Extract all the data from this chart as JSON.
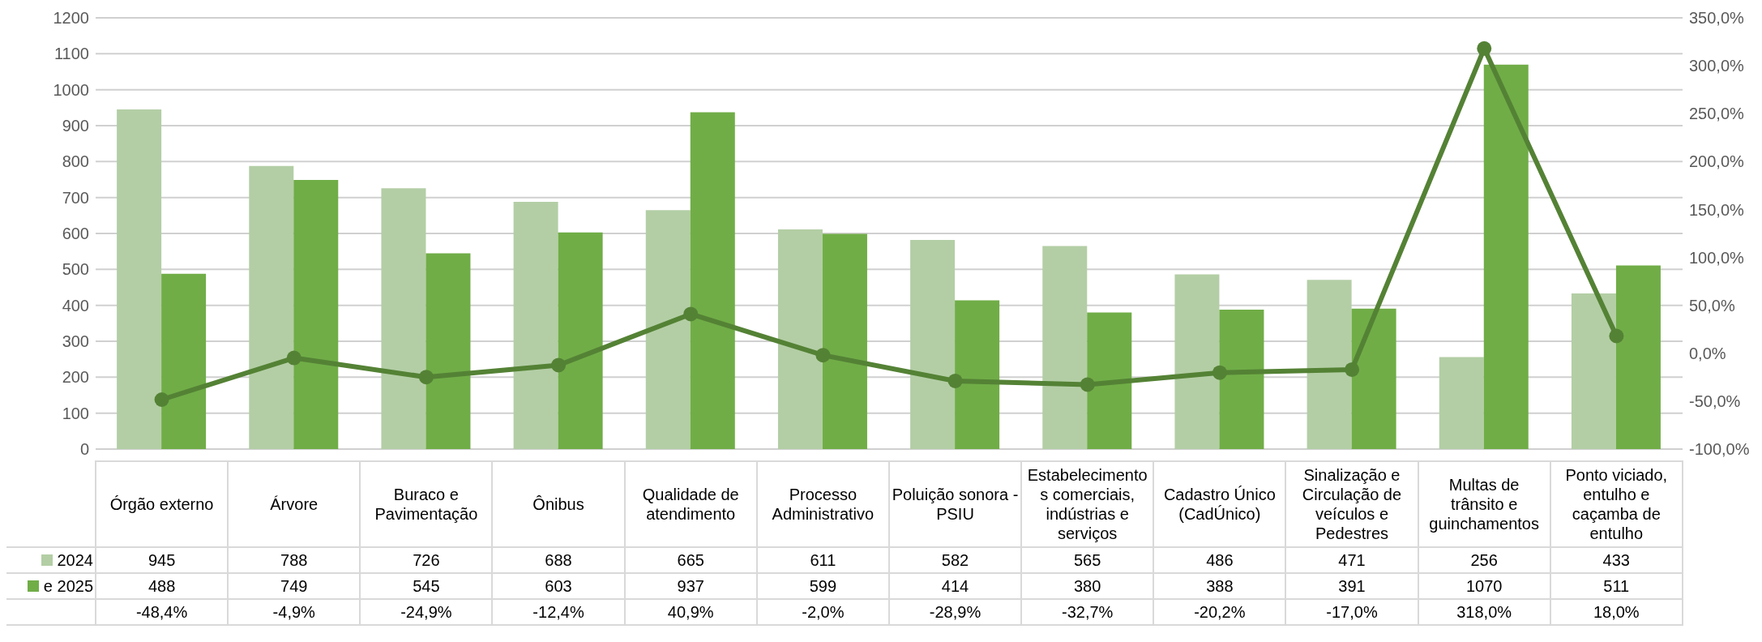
{
  "chart_data": {
    "type": "bar",
    "categories": [
      "Órgão externo",
      "Árvore",
      "Buraco e Pavimentação",
      "Ônibus",
      "Qualidade de atendimento",
      "Processo Administrativo",
      "Poluição sonora - PSIU",
      "Estabelecimentos comerciais, indústrias e serviços",
      "Cadastro Único (CadÚnico)",
      "Sinalização e Circulação de veículos e Pedestres",
      "Multas de trânsito e guinchamentos",
      "Ponto viciado, entulho e caçamba de entulho"
    ],
    "series": [
      {
        "name": "2024",
        "color": "#b3cea5",
        "values": [
          945,
          788,
          726,
          688,
          665,
          611,
          582,
          565,
          486,
          471,
          256,
          433
        ]
      },
      {
        "name": "e 2025",
        "color": "#70ad47",
        "values": [
          488,
          749,
          545,
          603,
          937,
          599,
          414,
          380,
          388,
          391,
          1070,
          511
        ]
      },
      {
        "type": "line",
        "axis": "y2",
        "color": "#548235",
        "values": [
          -48.4,
          -4.9,
          -24.9,
          -12.4,
          40.9,
          -2.0,
          -28.9,
          -32.7,
          -20.2,
          -17.0,
          318.0,
          18.0
        ],
        "value_labels": [
          "-48,4%",
          "-4,9%",
          "-24,9%",
          "-12,4%",
          "40,9%",
          "-2,0%",
          "-28,9%",
          "-32,7%",
          "-20,2%",
          "-17,0%",
          "318,0%",
          "18,0%"
        ]
      }
    ],
    "ylim": [
      0,
      1200
    ],
    "yticks": [
      0,
      100,
      200,
      300,
      400,
      500,
      600,
      700,
      800,
      900,
      1000,
      1100,
      1200
    ],
    "y2lim": [
      -100,
      350
    ],
    "y2ticks": [
      {
        "value": -100,
        "label": "-100,0%"
      },
      {
        "value": -50,
        "label": "-50,0%"
      },
      {
        "value": 0,
        "label": "0,0%"
      },
      {
        "value": 50,
        "label": "50,0%"
      },
      {
        "value": 100,
        "label": "100,0%"
      },
      {
        "value": 150,
        "label": "150,0%"
      },
      {
        "value": 200,
        "label": "200,0%"
      },
      {
        "value": 250,
        "label": "250,0%"
      },
      {
        "value": 300,
        "label": "300,0%"
      },
      {
        "value": 350,
        "label": "350,0%"
      }
    ],
    "grid": "y",
    "marker": "circle",
    "data_labels": true,
    "legend": "bottom left"
  }
}
